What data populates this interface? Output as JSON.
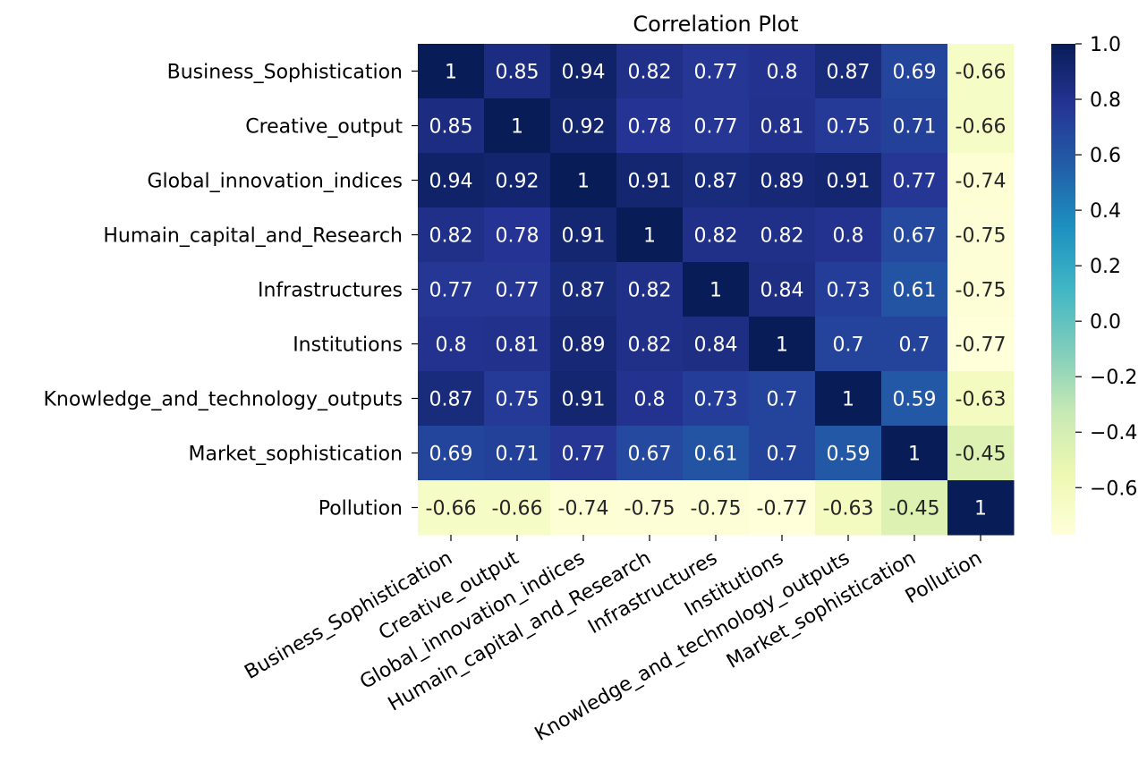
{
  "chart_data": {
    "type": "heatmap",
    "title": "Correlation Plot",
    "xlabel": "",
    "ylabel": "",
    "rows": [
      "Business_Sophistication",
      "Creative_output",
      "Global_innovation_indices",
      "Humain_capital_and_Research",
      "Infrastructures",
      "Institutions",
      "Knowledge_and_technology_outputs",
      "Market_sophistication",
      "Pollution"
    ],
    "columns": [
      "Business_Sophistication",
      "Creative_output",
      "Global_innovation_indices",
      "Humain_capital_and_Research",
      "Infrastructures",
      "Institutions",
      "Knowledge_and_technology_outputs",
      "Market_sophistication",
      "Pollution"
    ],
    "values": [
      [
        1,
        0.85,
        0.94,
        0.82,
        0.77,
        0.8,
        0.87,
        0.69,
        -0.66
      ],
      [
        0.85,
        1,
        0.92,
        0.78,
        0.77,
        0.81,
        0.75,
        0.71,
        -0.66
      ],
      [
        0.94,
        0.92,
        1,
        0.91,
        0.87,
        0.89,
        0.91,
        0.77,
        -0.74
      ],
      [
        0.82,
        0.78,
        0.91,
        1,
        0.82,
        0.82,
        0.8,
        0.67,
        -0.75
      ],
      [
        0.77,
        0.77,
        0.87,
        0.82,
        1,
        0.84,
        0.73,
        0.61,
        -0.75
      ],
      [
        0.8,
        0.81,
        0.89,
        0.82,
        0.84,
        1,
        0.7,
        0.7,
        -0.77
      ],
      [
        0.87,
        0.75,
        0.91,
        0.8,
        0.73,
        0.7,
        1,
        0.59,
        -0.63
      ],
      [
        0.69,
        0.71,
        0.77,
        0.67,
        0.61,
        0.7,
        0.59,
        1,
        -0.45
      ],
      [
        -0.66,
        -0.66,
        -0.74,
        -0.75,
        -0.75,
        -0.77,
        -0.63,
        -0.45,
        1
      ]
    ],
    "labels": [
      [
        "1",
        "0.85",
        "0.94",
        "0.82",
        "0.77",
        "0.8",
        "0.87",
        "0.69",
        "-0.66"
      ],
      [
        "0.85",
        "1",
        "0.92",
        "0.78",
        "0.77",
        "0.81",
        "0.75",
        "0.71",
        "-0.66"
      ],
      [
        "0.94",
        "0.92",
        "1",
        "0.91",
        "0.87",
        "0.89",
        "0.91",
        "0.77",
        "-0.74"
      ],
      [
        "0.82",
        "0.78",
        "0.91",
        "1",
        "0.82",
        "0.82",
        "0.8",
        "0.67",
        "-0.75"
      ],
      [
        "0.77",
        "0.77",
        "0.87",
        "0.82",
        "1",
        "0.84",
        "0.73",
        "0.61",
        "-0.75"
      ],
      [
        "0.8",
        "0.81",
        "0.89",
        "0.82",
        "0.84",
        "1",
        "0.7",
        "0.7",
        "-0.77"
      ],
      [
        "0.87",
        "0.75",
        "0.91",
        "0.8",
        "0.73",
        "0.7",
        "1",
        "0.59",
        "-0.63"
      ],
      [
        "0.69",
        "0.71",
        "0.77",
        "0.67",
        "0.61",
        "0.7",
        "0.59",
        "1",
        "-0.45"
      ],
      [
        "-0.66",
        "-0.66",
        "-0.74",
        "-0.75",
        "-0.75",
        "-0.77",
        "-0.63",
        "-0.45",
        "1"
      ]
    ],
    "colormap": "YlGnBu",
    "colormap_stops": [
      "#ffffd9",
      "#edf8b1",
      "#c7e9b4",
      "#7fcdbb",
      "#41b6c4",
      "#1d91c0",
      "#225ea8",
      "#253494",
      "#081d58"
    ],
    "vmin": -0.77,
    "vmax": 1.0,
    "colorbar": {
      "ticks": [
        1.0,
        0.8,
        0.6,
        0.4,
        0.2,
        0.0,
        -0.2,
        -0.4,
        -0.6
      ],
      "tick_labels": [
        "1.0",
        "0.8",
        "0.6",
        "0.4",
        "0.2",
        "0.0",
        "−0.2",
        "−0.4",
        "−0.6"
      ]
    },
    "grid": false,
    "legend": "colorbar-right"
  }
}
